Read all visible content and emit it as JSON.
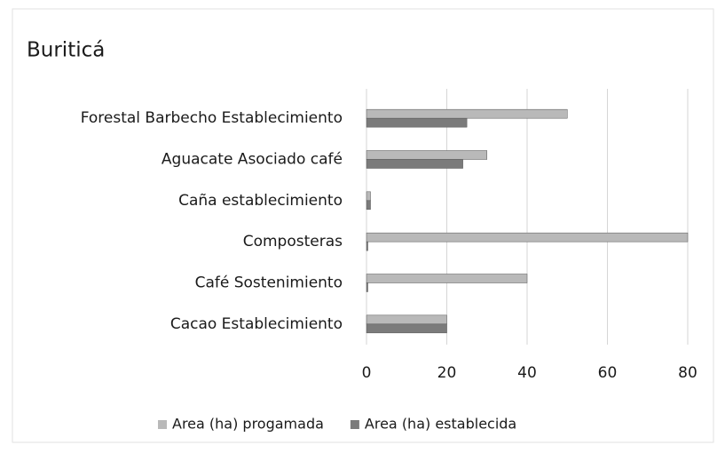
{
  "chart_data": {
    "type": "bar",
    "orientation": "horizontal",
    "title": "Buriticá",
    "categories": [
      "Forestal Barbecho Establecimiento",
      "Aguacate Asociado café",
      "Caña establecimiento",
      "Composteras",
      "Café Sostenimiento",
      "Cacao Establecimiento"
    ],
    "series": [
      {
        "name": "Area (ha) progamada",
        "color": "#b9b9b9",
        "values": [
          50,
          30,
          1,
          80,
          40,
          20
        ]
      },
      {
        "name": "Area (ha) establecida",
        "color": "#7b7b7b",
        "values": [
          25,
          24,
          1,
          0,
          0,
          20
        ]
      }
    ],
    "xlim": [
      0,
      80
    ],
    "xticks": [
      0,
      20,
      40,
      60,
      80
    ],
    "grid": true,
    "legend": "bottom"
  }
}
